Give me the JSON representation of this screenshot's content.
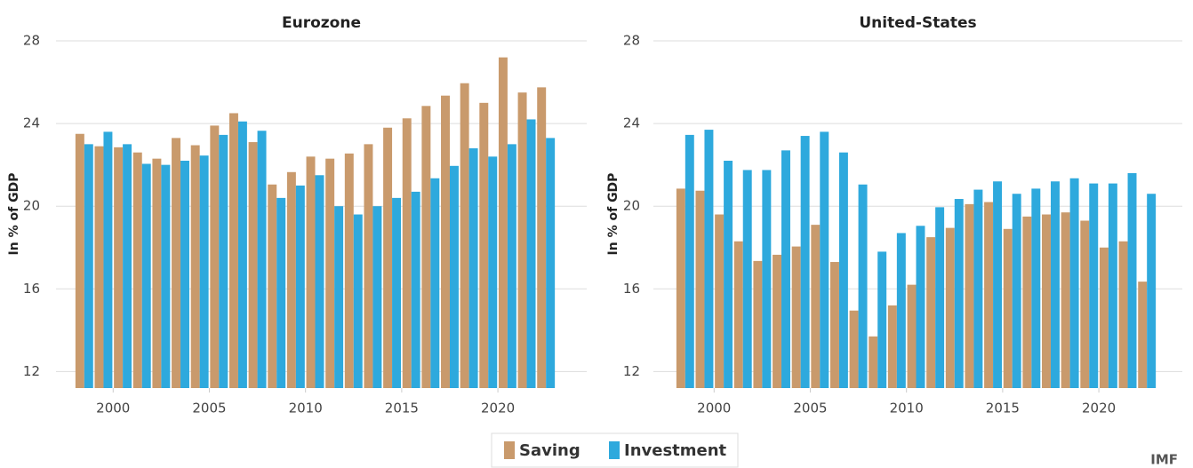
{
  "legend": [
    {
      "name": "Saving",
      "color": "#c99a6c"
    },
    {
      "name": "Investment",
      "color": "#2ea9dd"
    }
  ],
  "source": "IMF",
  "chart_data": [
    {
      "type": "bar",
      "title": "Eurozone",
      "y_label": "In % of GDP",
      "x": [
        1999,
        2000,
        2001,
        2002,
        2003,
        2004,
        2005,
        2006,
        2007,
        2008,
        2009,
        2010,
        2011,
        2012,
        2013,
        2014,
        2015,
        2016,
        2017,
        2018,
        2019,
        2020,
        2021,
        2022,
        2023
      ],
      "xlim": [
        1998.5,
        2023.5
      ],
      "xticks": [
        2000,
        2005,
        2010,
        2015,
        2020
      ],
      "ylim": [
        11.2,
        28
      ],
      "yticks": [
        12,
        16,
        20,
        24,
        28
      ],
      "grid": true,
      "series": [
        {
          "values": [
            23.5,
            22.9,
            22.85,
            22.6,
            22.3,
            23.3,
            22.95,
            23.9,
            24.5,
            23.1,
            21.05,
            21.65,
            22.4,
            22.3,
            22.55,
            23.0,
            23.8,
            24.25,
            24.85,
            25.35,
            25.95,
            25.0,
            27.2,
            25.5,
            25.75
          ]
        },
        {
          "values": [
            23.0,
            23.6,
            23.0,
            22.05,
            22.0,
            22.2,
            22.45,
            23.45,
            24.1,
            23.65,
            20.4,
            21.0,
            21.5,
            20.0,
            19.6,
            20.0,
            20.4,
            20.7,
            21.35,
            21.95,
            22.8,
            22.4,
            23.0,
            24.2,
            23.3
          ]
        }
      ]
    },
    {
      "type": "bar",
      "title": "United-States",
      "y_label": "In % of GDP",
      "x": [
        1999,
        2000,
        2001,
        2002,
        2003,
        2004,
        2005,
        2006,
        2007,
        2008,
        2009,
        2010,
        2011,
        2012,
        2013,
        2014,
        2015,
        2016,
        2017,
        2018,
        2019,
        2020,
        2021,
        2022,
        2023
      ],
      "xlim": [
        1998.5,
        2023.5
      ],
      "xticks": [
        2000,
        2005,
        2010,
        2015,
        2020
      ],
      "ylim": [
        11.2,
        28
      ],
      "yticks": [
        12,
        16,
        20,
        24,
        28
      ],
      "grid": true,
      "series": [
        {
          "values": [
            20.85,
            20.75,
            19.6,
            18.3,
            17.35,
            17.65,
            18.05,
            19.1,
            17.3,
            14.95,
            13.7,
            15.2,
            16.2,
            18.5,
            18.95,
            20.1,
            20.2,
            18.9,
            19.5,
            19.6,
            19.7,
            19.3,
            18.0,
            18.3,
            16.35
          ]
        },
        {
          "values": [
            23.45,
            23.7,
            22.2,
            21.75,
            21.75,
            22.7,
            23.4,
            23.6,
            22.6,
            21.05,
            17.8,
            18.7,
            19.05,
            19.95,
            20.35,
            20.8,
            21.2,
            20.6,
            20.85,
            21.2,
            21.35,
            21.1,
            21.1,
            21.6,
            20.6
          ]
        }
      ]
    }
  ]
}
